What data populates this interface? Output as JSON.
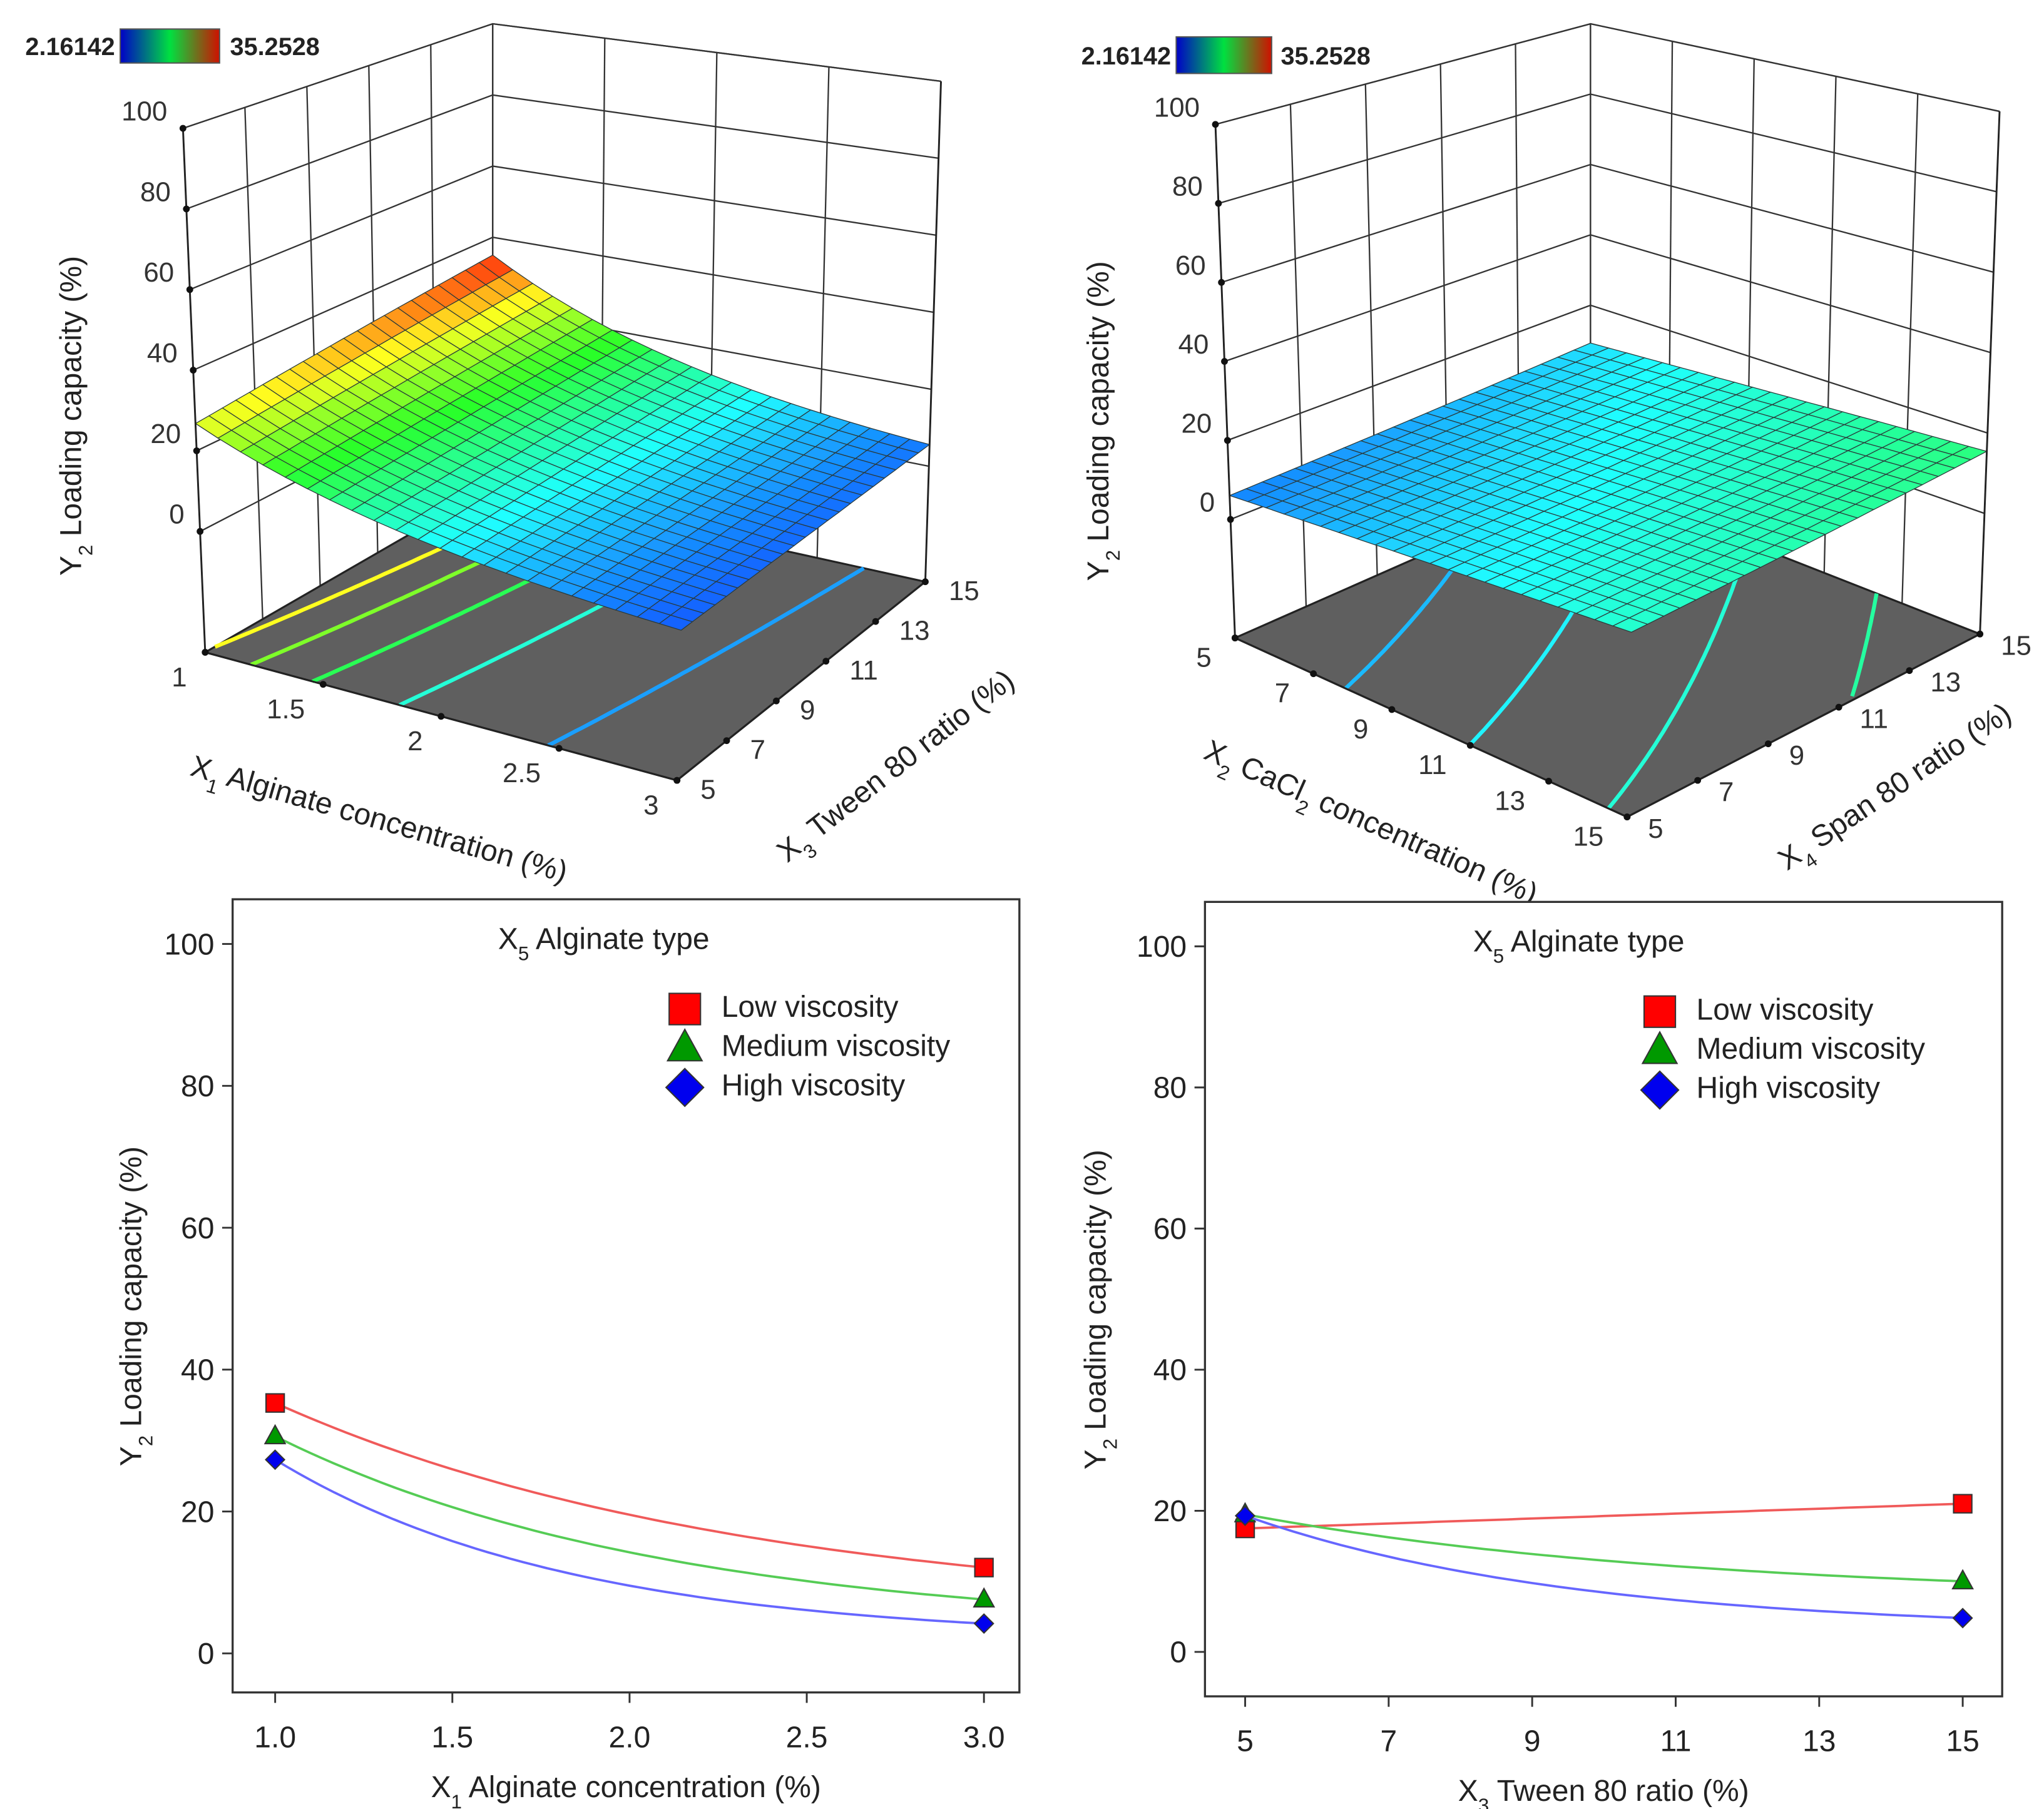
{
  "chart_data": [
    {
      "type": "surface",
      "colorbar": {
        "min_label": "2.16142",
        "max_label": "35.2528",
        "min": 2.16142,
        "max": 35.2528,
        "min_color": "#3b3bff",
        "max_color": "#ff3030"
      },
      "z_axis": {
        "title": {
          "var": "Y",
          "sub": "2",
          "text": " Loading  capacity  (%)"
        },
        "ticks": [
          "100",
          "80",
          "60",
          "40",
          "20",
          "0"
        ],
        "range": [
          -30,
          100
        ]
      },
      "x_axis": {
        "title": {
          "var": "X",
          "sub": "1",
          "text": " Alginate  concentration  (%)"
        },
        "ticks": [
          "1",
          "1.5",
          "2",
          "2.5",
          "3"
        ],
        "range": [
          1,
          3
        ]
      },
      "y_axis": {
        "title": {
          "var": "X",
          "sub": "3",
          "text": " Tween 80 ratio (%)"
        },
        "ticks": [
          "5",
          "7",
          "9",
          "11",
          "13",
          "15"
        ],
        "range": [
          5,
          15
        ]
      }
    },
    {
      "type": "surface",
      "colorbar": {
        "min_label": "2.16142",
        "max_label": "35.2528",
        "min": 2.16142,
        "max": 35.2528,
        "min_color": "#3b3bff",
        "max_color": "#ff3030"
      },
      "z_axis": {
        "title": {
          "var": "Y",
          "sub": "2",
          "text": " Loading  capacity  (%)"
        },
        "ticks": [
          "100",
          "80",
          "60",
          "40",
          "20",
          "0"
        ],
        "range": [
          -30,
          100
        ]
      },
      "x_axis": {
        "title": {
          "var": "X",
          "sub": "2",
          "text": " CaCl",
          "sub2": "2",
          "text2": " concentration  (%)"
        },
        "ticks": [
          "5",
          "7",
          "9",
          "11",
          "13",
          "15"
        ],
        "range": [
          5,
          15
        ]
      },
      "y_axis": {
        "title": {
          "var": "X",
          "sub": "4",
          "text": " Span 80 ratio (%)"
        },
        "ticks": [
          "5",
          "7",
          "9",
          "11",
          "13",
          "15"
        ],
        "range": [
          5,
          15
        ]
      }
    },
    {
      "type": "line",
      "title": {
        "var": "X",
        "sub": "5",
        "text": " Alginate type"
      },
      "xlabel": {
        "var": "X",
        "sub": "1",
        "text": " Alginate concentration (%)"
      },
      "ylabel": {
        "var": "Y",
        "sub": "2",
        "text": " Loading capacity (%)"
      },
      "xlim": [
        0.88,
        3.1
      ],
      "ylim": [
        -5.5,
        106.3
      ],
      "xticks": [
        "1.0",
        "1.5",
        "2.0",
        "2.5",
        "3.0"
      ],
      "yticks": [
        "0",
        "20",
        "40",
        "60",
        "80",
        "100"
      ],
      "legend_position": "top-right",
      "series": [
        {
          "name": "Low viscosity",
          "color": "#ff0000",
          "line_color": "#f05a5a",
          "marker": "square",
          "x": [
            1.0,
            3.0
          ],
          "y": [
            35.3,
            12.1
          ]
        },
        {
          "name": "Medium viscosity",
          "color": "#009900",
          "line_color": "#55cc55",
          "marker": "triangle",
          "x": [
            1.0,
            3.0
          ],
          "y": [
            30.6,
            7.6
          ]
        },
        {
          "name": "High viscosity",
          "color": "#0000ee",
          "line_color": "#6666ff",
          "marker": "diamond",
          "x": [
            1.0,
            3.0
          ],
          "y": [
            27.3,
            4.2
          ]
        }
      ]
    },
    {
      "type": "line",
      "title": {
        "var": "X",
        "sub": "5",
        "text": " Alginate type"
      },
      "xlabel": {
        "var": "X",
        "sub": "3",
        "text": " Tween 80 ratio (%)"
      },
      "ylabel": {
        "var": "Y",
        "sub": "2",
        "text": " Loading capacity (%)"
      },
      "xlim": [
        4.44,
        15.55
      ],
      "ylim": [
        -6.3,
        106.3
      ],
      "xticks": [
        "5",
        "7",
        "9",
        "11",
        "13",
        "15"
      ],
      "yticks": [
        "0",
        "20",
        "40",
        "60",
        "80",
        "100"
      ],
      "legend_position": "top-right",
      "series": [
        {
          "name": "Low viscosity",
          "color": "#ff0000",
          "line_color": "#f05a5a",
          "marker": "square",
          "x": [
            5,
            15
          ],
          "y": [
            17.5,
            21.0
          ]
        },
        {
          "name": "Medium viscosity",
          "color": "#009900",
          "line_color": "#55cc55",
          "marker": "triangle",
          "x": [
            5,
            15
          ],
          "y": [
            19.5,
            10.0
          ]
        },
        {
          "name": "High viscosity",
          "color": "#0000ee",
          "line_color": "#6666ff",
          "marker": "diamond",
          "x": [
            5,
            15
          ],
          "y": [
            19.3,
            4.8
          ]
        }
      ]
    }
  ]
}
